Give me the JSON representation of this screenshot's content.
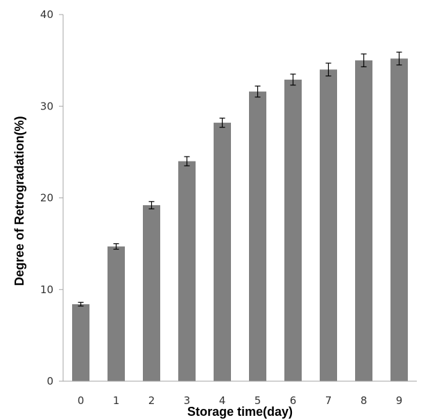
{
  "chart_data": {
    "type": "bar",
    "title": "",
    "xlabel": "Storage time(day)",
    "ylabel": "Degree of Retrogradation(%)",
    "categories": [
      "0",
      "1",
      "2",
      "3",
      "4",
      "5",
      "6",
      "7",
      "8",
      "9"
    ],
    "values": [
      8.4,
      14.7,
      19.2,
      24.0,
      28.2,
      31.6,
      32.9,
      34.0,
      35.0,
      35.2
    ],
    "errors": [
      0.2,
      0.3,
      0.4,
      0.5,
      0.5,
      0.6,
      0.6,
      0.7,
      0.7,
      0.7
    ],
    "ylim": [
      0,
      40
    ],
    "yticks": [
      "0",
      "10",
      "20",
      "30",
      "40"
    ],
    "grid": false,
    "bar_color": "#808080",
    "error_color": "#000000",
    "axis_color": "#a6a6a6"
  }
}
